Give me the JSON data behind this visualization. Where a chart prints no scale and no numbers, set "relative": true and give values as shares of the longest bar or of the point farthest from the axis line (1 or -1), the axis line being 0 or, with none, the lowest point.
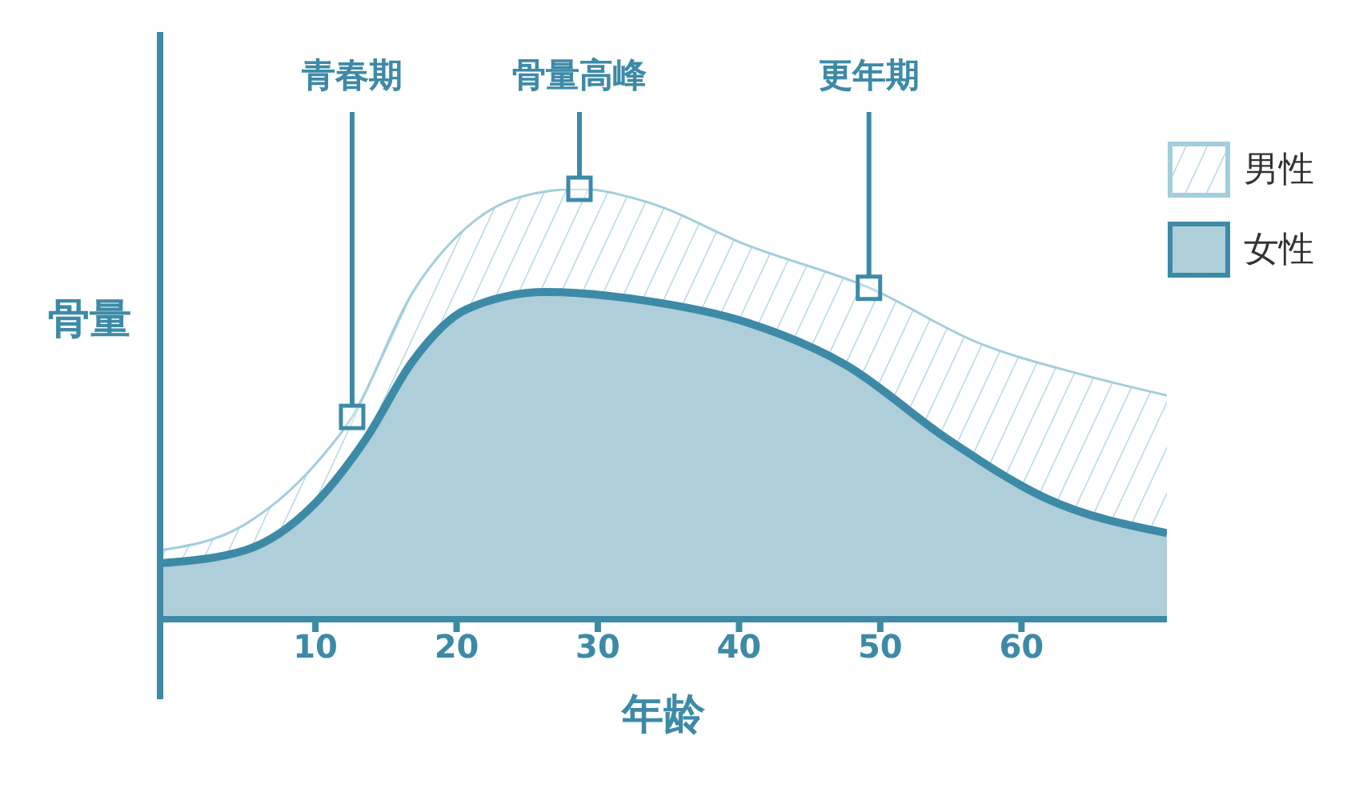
{
  "chart_data": {
    "type": "area",
    "relative": true,
    "xlabel": "年龄",
    "ylabel": "骨量",
    "xlim": [
      -1,
      70.3
    ],
    "xticks": [
      10,
      20,
      30,
      40,
      50,
      60
    ],
    "legend": "right",
    "line_style": "solid",
    "marker": "none",
    "annotations": [
      {
        "text": "青春期",
        "x": 12.6,
        "y": 0.47
      },
      {
        "text": "骨量高峰",
        "x": 28.7,
        "y": 1
      },
      {
        "text": "更年期",
        "x": 49.2,
        "y": 0.77
      }
    ],
    "series": [
      {
        "name": "男性",
        "color": "#a3cedd",
        "x": [
          -1,
          5,
          10,
          12.6,
          16.9,
          20.7,
          24.4,
          28.7,
          33.4,
          40.5,
          49.2,
          57.1,
          64.1,
          70.3
        ],
        "values": [
          0.16,
          0.22,
          0.36,
          0.47,
          0.76,
          0.91,
          0.98,
          1,
          0.97,
          0.87,
          0.77,
          0.64,
          0.57,
          0.52
        ]
      },
      {
        "name": "女性",
        "color": "#3d8aa7",
        "x": [
          -1,
          5,
          10,
          13.6,
          16.9,
          20.7,
          26.3,
          33.4,
          40.5,
          47.6,
          54.7,
          61.8,
          70.3
        ],
        "values": [
          0.13,
          0.16,
          0.27,
          0.42,
          0.6,
          0.72,
          0.76,
          0.74,
          0.69,
          0.59,
          0.42,
          0.28,
          0.2
        ]
      }
    ]
  }
}
